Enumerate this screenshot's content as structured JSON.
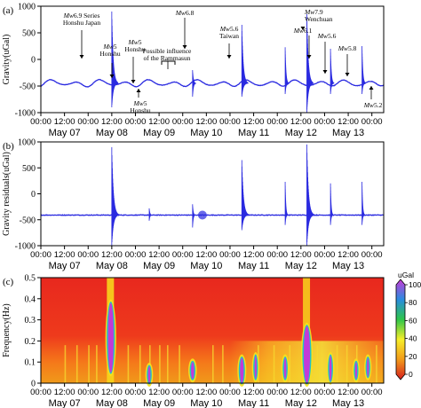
{
  "chart_data": [
    {
      "type": "line",
      "panel": "(a)",
      "ylabel": "Gravity(uGal)",
      "ylim": [
        -1000,
        1000
      ],
      "yticks": [
        -1000,
        -500,
        0,
        500,
        1000
      ],
      "x_range_hours": [
        0,
        174
      ],
      "series": [
        {
          "color": "#2a2ae0",
          "baseline": -450,
          "tide_amplitude": 65,
          "spikes": [
            {
              "x": 36,
              "max": 900,
              "min": -900
            },
            {
              "x": 77,
              "max": -200,
              "min": -700
            },
            {
              "x": 102,
              "max": 650,
              "min": -700
            },
            {
              "x": 124,
              "max": 230,
              "min": -650
            },
            {
              "x": 135,
              "max": 850,
              "min": -1000
            },
            {
              "x": 147,
              "max": 200,
              "min": -650
            },
            {
              "x": 163,
              "max": 250,
              "min": -650
            }
          ]
        }
      ],
      "annotations": [
        {
          "prefix": "Mw",
          "text": "6.9 Series",
          "line2": "Honshu Japan"
        },
        {
          "prefix": "Mw",
          "text": "5",
          "line2": "Honshu"
        },
        {
          "prefix": "Mw",
          "text": "5",
          "line2": "Honshu"
        },
        {
          "prefix": "Mw",
          "text": "5",
          "line2": "Honshu"
        },
        {
          "prefix": "",
          "text": "Possible influence",
          "line2": "of the Rammasun"
        },
        {
          "prefix": "Mw",
          "text": "6.8",
          "line2": ""
        },
        {
          "prefix": "Mw",
          "text": "5.6",
          "line2": "Taiwan"
        },
        {
          "prefix": "Mw",
          "text": "7.9",
          "line2": "Wenchuan"
        },
        {
          "prefix": "Mw",
          "text": "6.1",
          "line2": ""
        },
        {
          "prefix": "Mw",
          "text": "5.6",
          "line2": ""
        },
        {
          "prefix": "Mw",
          "text": "5.8",
          "line2": ""
        },
        {
          "prefix": "Mw",
          "text": "5.2",
          "line2": ""
        }
      ]
    },
    {
      "type": "line",
      "panel": "(b)",
      "ylabel": "Gravity residuals(uGal)",
      "ylim": [
        -1000,
        1000
      ],
      "yticks": [
        -1000,
        -500,
        0,
        500,
        1000
      ],
      "series": [
        {
          "color": "#2a2ae0",
          "baseline": -410,
          "spikes": [
            {
              "x": 36,
              "max": 900,
              "min": -1000
            },
            {
              "x": 55,
              "max": -280,
              "min": -520
            },
            {
              "x": 77,
              "max": -200,
              "min": -650
            },
            {
              "x": 102,
              "max": 650,
              "min": -700
            },
            {
              "x": 124,
              "max": 230,
              "min": -600
            },
            {
              "x": 135,
              "max": 950,
              "min": -1000
            },
            {
              "x": 147,
              "max": 200,
              "min": -600
            },
            {
              "x": 163,
              "max": 230,
              "min": -600
            }
          ]
        }
      ]
    },
    {
      "type": "heatmap",
      "panel": "(c)",
      "ylabel": "Frequency(Hz)",
      "ylim": [
        0,
        0.5
      ],
      "yticks": [
        0,
        0.1,
        0.2,
        0.3,
        0.4,
        0.5
      ],
      "colorbar": {
        "unit": "uGal",
        "range": [
          0,
          100
        ],
        "ticks": [
          0,
          20,
          40,
          60,
          80,
          100
        ]
      }
    }
  ],
  "x_axis": {
    "time_labels": [
      "00:00",
      "12:00",
      "00:00",
      "12:00",
      "00:00",
      "12:00",
      "00:00",
      "12:00",
      "00:00",
      "12:00",
      "00:00",
      "12:00",
      "00:00",
      "12:00",
      "00:00"
    ],
    "date_labels": [
      "May 07",
      "May 08",
      "May 09",
      "May 10",
      "May 11",
      "May 12",
      "May 13"
    ]
  }
}
